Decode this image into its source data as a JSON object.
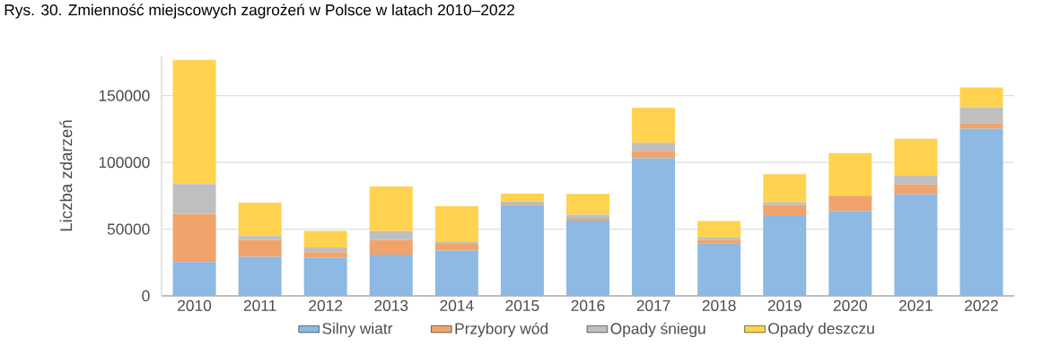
{
  "chart_data": {
    "type": "bar",
    "stacked": true,
    "title": "Rys. 30. Zmienność miejscowych zagrożeń w Polsce w latach 2010–2022",
    "ylabel": "Liczba zdarzeń",
    "categories": [
      "2010",
      "2011",
      "2012",
      "2013",
      "2014",
      "2015",
      "2016",
      "2017",
      "2018",
      "2019",
      "2020",
      "2021",
      "2022"
    ],
    "series": [
      {
        "name": "Silny wiatr",
        "color": "#8db9e2",
        "values": [
          25400,
          29200,
          28700,
          30900,
          33900,
          68100,
          56400,
          103100,
          39400,
          60400,
          63700,
          76100,
          125200
        ]
      },
      {
        "name": "Przybory wód",
        "color": "#f0a46c",
        "values": [
          36100,
          12800,
          4000,
          11100,
          5000,
          1000,
          1400,
          5500,
          2800,
          7700,
          11300,
          7300,
          4000
        ]
      },
      {
        "name": "Opady śniegu",
        "color": "#bfbfbf",
        "values": [
          22200,
          2900,
          3600,
          6500,
          1400,
          1500,
          3000,
          6000,
          1400,
          2000,
          null,
          6600,
          12200
        ]
      },
      {
        "name": "Opady deszczu",
        "color": "#ffd34f",
        "values": [
          93100,
          25000,
          12400,
          33400,
          26800,
          6000,
          15600,
          26200,
          12400,
          21100,
          31900,
          27700,
          14800
        ]
      }
    ],
    "ylim": [
      0,
      180000
    ],
    "yticks": [
      0,
      50000,
      100000,
      150000
    ],
    "grid": "y",
    "legend": "bottom"
  }
}
